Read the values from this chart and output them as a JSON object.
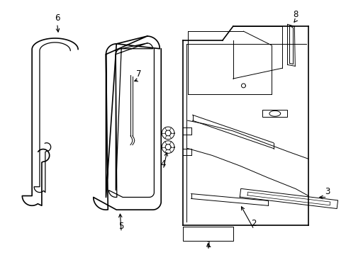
{
  "background_color": "#ffffff",
  "line_color": "#000000",
  "fig_width": 4.89,
  "fig_height": 3.6,
  "dpi": 100,
  "label_fontsize": 8.5,
  "lw_main": 1.2,
  "lw_inner": 0.9,
  "lw_thin": 0.7
}
